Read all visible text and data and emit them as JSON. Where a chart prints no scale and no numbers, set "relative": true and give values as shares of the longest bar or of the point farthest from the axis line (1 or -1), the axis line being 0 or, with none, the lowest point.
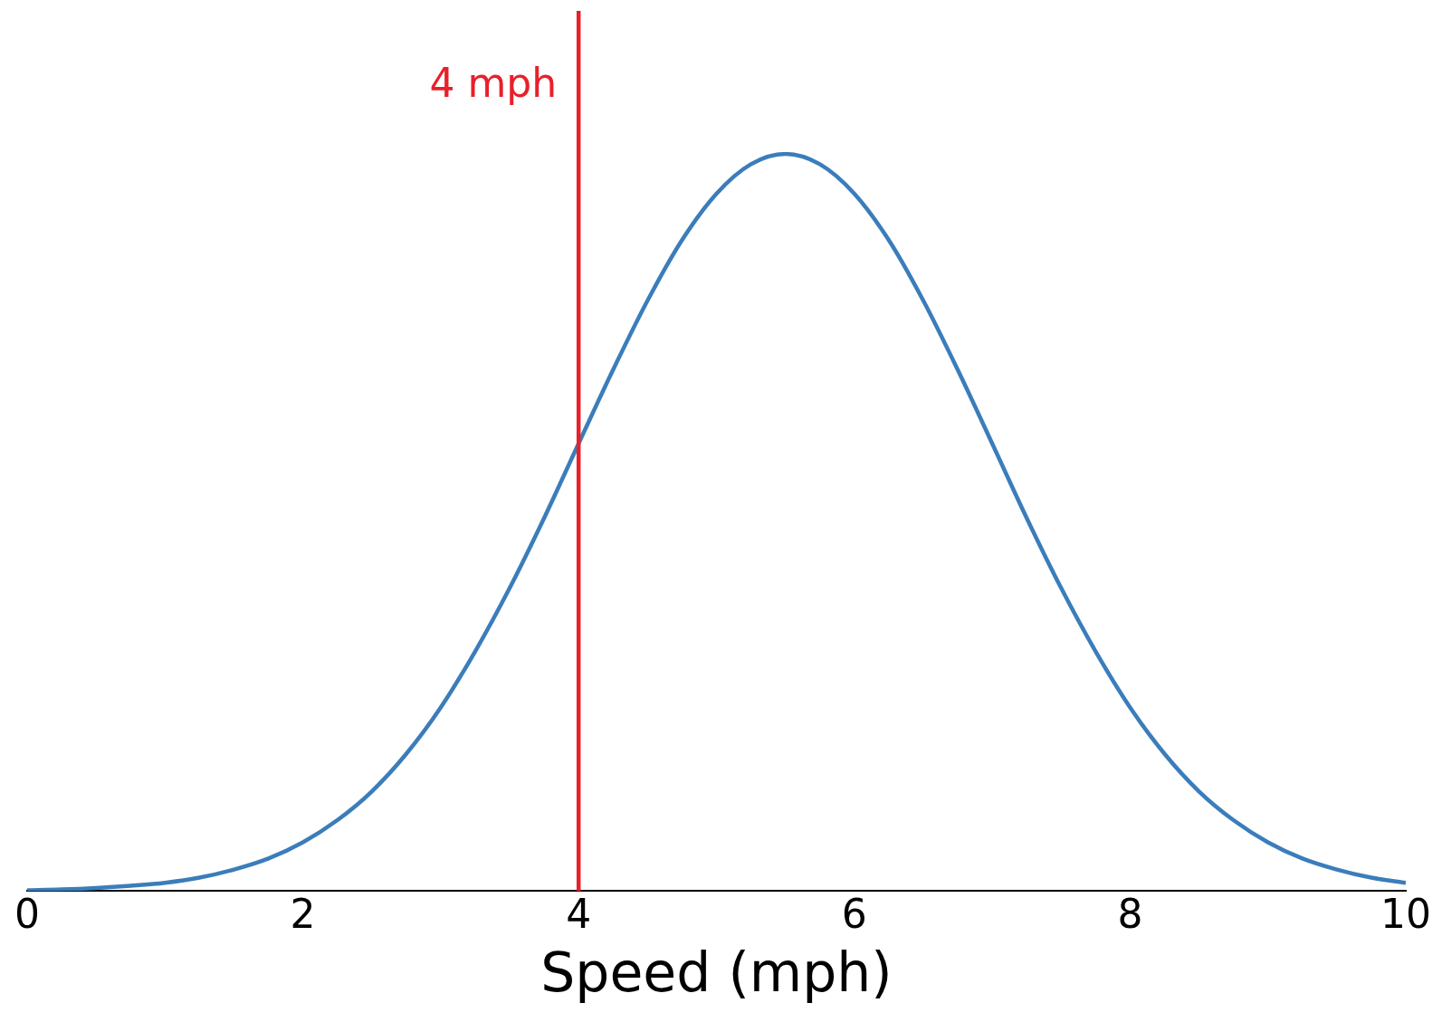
{
  "chart_data": {
    "type": "line",
    "xlabel": "Speed (mph)",
    "relative": true,
    "xlim": [
      0,
      10
    ],
    "xticks": [
      0,
      2,
      4,
      6,
      8,
      10
    ],
    "grid": false,
    "legend": false,
    "marker": "none",
    "line_style": "solid",
    "x": [
      0,
      0.25,
      0.5,
      0.75,
      1,
      1.25,
      1.5,
      1.75,
      2,
      2.25,
      2.5,
      2.75,
      3,
      3.25,
      3.5,
      3.75,
      4,
      4.25,
      4.5,
      4.75,
      5,
      5.25,
      5.5,
      5.75,
      6,
      6.25,
      6.5,
      6.75,
      7,
      7.25,
      7.5,
      7.75,
      8,
      8.25,
      8.5,
      8.75,
      9,
      9.25,
      9.5,
      9.75,
      10
    ],
    "series": [
      {
        "color": "#3b7dbb",
        "values": [
          0.001,
          0.002,
          0.004,
          0.007,
          0.011,
          0.018,
          0.029,
          0.044,
          0.066,
          0.096,
          0.135,
          0.186,
          0.249,
          0.325,
          0.411,
          0.506,
          0.607,
          0.707,
          0.801,
          0.883,
          0.946,
          0.986,
          1,
          0.986,
          0.946,
          0.883,
          0.801,
          0.707,
          0.607,
          0.506,
          0.411,
          0.325,
          0.249,
          0.186,
          0.135,
          0.096,
          0.066,
          0.044,
          0.029,
          0.018,
          0.011
        ]
      }
    ],
    "ref_lines": [
      {
        "axis": "x",
        "value": 4,
        "label": "4 mph",
        "color": "#e8202a",
        "line_style": "solid"
      }
    ]
  }
}
